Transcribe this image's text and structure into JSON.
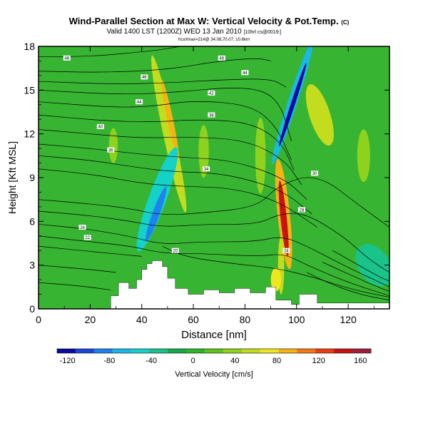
{
  "chart_data": {
    "type": "heatmap",
    "title": "Wind-Parallel Section at Max W: Vertical Velocity & Pot.Temp.",
    "title_mark": "(C)",
    "subtitle": "Valid 1400 LST (1200Z) WED 13 Jan 2010",
    "subtitle_note": "[10hrl cs@0019:]",
    "info_line": "hcx/Imax=214@ 34.08,70.07; 10.6km",
    "xlabel": "Distance [nm]",
    "ylabel": "Height [Kft MSL]",
    "xlim": [
      0,
      136
    ],
    "ylim": [
      0,
      18
    ],
    "xticks": [
      0,
      20,
      40,
      60,
      80,
      100,
      120
    ],
    "yticks": [
      0,
      3,
      6,
      9,
      12,
      15,
      18
    ],
    "colorbar": {
      "label": "Vertical Velocity [cm/s]",
      "ticks": [
        -120,
        -80,
        -40,
        0,
        40,
        80,
        120,
        160
      ],
      "range": [
        -130,
        170
      ],
      "colors": [
        "#0a0aa0",
        "#1e46dc",
        "#1e82f0",
        "#19b9e6",
        "#14d2c8",
        "#19c389",
        "#14a84a",
        "#2eb52e",
        "#5fc31e",
        "#8fd21e",
        "#c3dc1e",
        "#f0e61e",
        "#f5b414",
        "#f57814",
        "#eb3c14",
        "#c81414",
        "#a01e3c"
      ]
    },
    "colors": {
      "background": "#37b432",
      "terrain": "#ffffff"
    },
    "terrain": [
      [
        0,
        0
      ],
      [
        28,
        0
      ],
      [
        28,
        0.9
      ],
      [
        31,
        0.9
      ],
      [
        31,
        1.8
      ],
      [
        35,
        1.8
      ],
      [
        35,
        1.4
      ],
      [
        38,
        1.4
      ],
      [
        38,
        2.0
      ],
      [
        40,
        2.0
      ],
      [
        40,
        2.7
      ],
      [
        42,
        2.7
      ],
      [
        42,
        3.1
      ],
      [
        44,
        3.1
      ],
      [
        44,
        3.3
      ],
      [
        48,
        3.3
      ],
      [
        48,
        2.9
      ],
      [
        50,
        2.9
      ],
      [
        50,
        2.1
      ],
      [
        53,
        2.1
      ],
      [
        53,
        1.4
      ],
      [
        58,
        1.4
      ],
      [
        58,
        1.0
      ],
      [
        64,
        1.0
      ],
      [
        64,
        1.3
      ],
      [
        70,
        1.3
      ],
      [
        70,
        1.1
      ],
      [
        76,
        1.1
      ],
      [
        76,
        1.4
      ],
      [
        82,
        1.4
      ],
      [
        82,
        1.1
      ],
      [
        88,
        1.1
      ],
      [
        88,
        1.5
      ],
      [
        92,
        1.5
      ],
      [
        92,
        0.6
      ],
      [
        98,
        0.6
      ],
      [
        98,
        0.3
      ],
      [
        101,
        0.3
      ],
      [
        101,
        1.0
      ],
      [
        108,
        1.0
      ],
      [
        108,
        0.4
      ],
      [
        136,
        0.4
      ],
      [
        136,
        0
      ],
      [
        0,
        0
      ]
    ],
    "velocity_features": [
      {
        "x": 50.5,
        "y": 12.0,
        "rx": 2.2,
        "ry": 5.5,
        "value": 50,
        "rot": -12
      },
      {
        "x": 51.0,
        "y": 13.0,
        "rx": 1.1,
        "ry": 2.8,
        "value": 95,
        "rot": -12
      },
      {
        "x": 64.0,
        "y": 10.8,
        "rx": 2.0,
        "ry": 1.8,
        "value": 40,
        "rot": 0
      },
      {
        "x": 29.0,
        "y": 11.2,
        "rx": 1.7,
        "ry": 1.2,
        "value": 38,
        "rot": 0
      },
      {
        "x": 86.0,
        "y": 10.5,
        "rx": 2.0,
        "ry": 2.6,
        "value": 30,
        "rot": 0
      },
      {
        "x": 95.0,
        "y": 6.5,
        "rx": 2.4,
        "ry": 3.8,
        "value": 95,
        "rot": -6
      },
      {
        "x": 95.0,
        "y": 6.2,
        "rx": 1.2,
        "ry": 2.6,
        "value": 150,
        "rot": -6
      },
      {
        "x": 109.0,
        "y": 13.3,
        "rx": 4.0,
        "ry": 2.2,
        "value": 55,
        "rot": -18
      },
      {
        "x": 126.0,
        "y": 10.5,
        "rx": 2.5,
        "ry": 1.8,
        "value": 40,
        "rot": 0
      },
      {
        "x": 46.0,
        "y": 7.5,
        "rx": 3.4,
        "ry": 3.8,
        "value": -45,
        "rot": 20
      },
      {
        "x": 45.5,
        "y": 6.5,
        "rx": 1.4,
        "ry": 2.0,
        "value": -80,
        "rot": 20
      },
      {
        "x": 98.5,
        "y": 14.2,
        "rx": 1.8,
        "ry": 4.5,
        "value": -70,
        "rot": 18
      },
      {
        "x": 98.5,
        "y": 14.0,
        "rx": 0.8,
        "ry": 3.0,
        "value": -120,
        "rot": 18
      },
      {
        "x": 94.0,
        "y": 3.0,
        "rx": 1.2,
        "ry": 2.0,
        "value": 60,
        "rot": 0
      },
      {
        "x": 130.0,
        "y": 3.0,
        "rx": 6.0,
        "ry": 1.6,
        "value": -30,
        "rot": -35
      },
      {
        "x": 92.0,
        "y": 2.0,
        "rx": 2.0,
        "ry": 0.8,
        "value": 80,
        "rot": 0
      }
    ],
    "theta_contours": [
      {
        "label": "48",
        "lx": 11,
        "ly": 17.2,
        "points": [
          [
            0,
            17.3
          ],
          [
            20,
            17.3
          ],
          [
            45,
            17.7
          ],
          [
            55,
            18.0
          ]
        ]
      },
      {
        "label": "46",
        "lx": 71,
        "ly": 17.2,
        "points": [
          [
            0,
            16.3
          ],
          [
            25,
            16.2
          ],
          [
            50,
            16.4
          ],
          [
            70,
            17.0
          ],
          [
            85,
            17.2
          ],
          [
            90,
            17.0
          ]
        ]
      },
      {
        "label": "46",
        "lx": 41,
        "ly": 15.9,
        "points": [
          [
            0,
            15.6
          ],
          [
            30,
            15.4
          ],
          [
            50,
            15.5
          ],
          [
            70,
            15.7
          ],
          [
            90,
            15.8
          ],
          [
            96,
            15.2
          ]
        ]
      },
      {
        "label": "44",
        "lx": 80,
        "ly": 16.2,
        "points": [
          [
            0,
            15.0
          ],
          [
            30,
            14.7
          ],
          [
            50,
            14.8
          ],
          [
            80,
            15.3
          ],
          [
            93,
            14.5
          ],
          [
            98,
            11.5
          ]
        ]
      },
      {
        "label": "44",
        "lx": 39,
        "ly": 14.2,
        "points": [
          [
            0,
            14.2
          ],
          [
            30,
            13.8
          ],
          [
            45,
            13.9
          ],
          [
            60,
            14.3
          ],
          [
            82,
            14.0
          ],
          [
            92,
            12.6
          ],
          [
            98,
            10.2
          ]
        ]
      },
      {
        "label": "42",
        "lx": 67,
        "ly": 14.8,
        "points": [
          [
            0,
            13.3
          ],
          [
            25,
            12.9
          ],
          [
            45,
            12.8
          ],
          [
            62,
            13.0
          ],
          [
            82,
            12.8
          ],
          [
            94,
            11.5
          ],
          [
            99,
            9.5
          ]
        ]
      },
      {
        "label": "40",
        "lx": 24,
        "ly": 12.5,
        "points": [
          [
            0,
            12.3
          ],
          [
            20,
            12.0
          ],
          [
            40,
            11.7
          ],
          [
            58,
            11.8
          ],
          [
            80,
            11.6
          ],
          [
            95,
            10.3
          ],
          [
            102,
            8.5
          ]
        ]
      },
      {
        "label": "38",
        "lx": 67,
        "ly": 13.3,
        "points": [
          [
            0,
            11.3
          ],
          [
            20,
            11.0
          ],
          [
            40,
            10.6
          ],
          [
            55,
            10.4
          ],
          [
            75,
            10.2
          ],
          [
            95,
            9.0
          ],
          [
            104,
            7.5
          ]
        ]
      },
      {
        "label": "36",
        "lx": 28,
        "ly": 10.9,
        "points": [
          [
            0,
            10.5
          ],
          [
            20,
            10.2
          ],
          [
            38,
            9.7
          ],
          [
            52,
            9.4
          ],
          [
            72,
            9.3
          ],
          [
            94,
            8.2
          ],
          [
            106,
            6.5
          ]
        ]
      },
      {
        "label": "34",
        "lx": 65,
        "ly": 9.6,
        "points": [
          [
            0,
            9.6
          ],
          [
            22,
            9.2
          ],
          [
            40,
            8.6
          ],
          [
            55,
            8.4
          ],
          [
            75,
            8.3
          ],
          [
            93,
            7.4
          ],
          [
            108,
            5.6
          ]
        ]
      },
      {
        "label": "30",
        "lx": 107,
        "ly": 9.3,
        "points": [
          [
            0,
            7.5
          ],
          [
            20,
            7.2
          ],
          [
            35,
            6.9
          ],
          [
            48,
            6.4
          ],
          [
            65,
            6.6
          ],
          [
            85,
            7.0
          ],
          [
            93,
            8.5
          ],
          [
            108,
            9.3
          ],
          [
            125,
            7.0
          ],
          [
            136,
            5.6
          ]
        ]
      },
      {
        "label": "28",
        "lx": 102,
        "ly": 6.8,
        "points": [
          [
            0,
            6.7
          ],
          [
            20,
            6.4
          ],
          [
            36,
            6.0
          ],
          [
            48,
            5.6
          ],
          [
            64,
            5.8
          ],
          [
            85,
            5.8
          ],
          [
            93,
            6.5
          ],
          [
            103,
            6.6
          ],
          [
            118,
            5.0
          ],
          [
            128,
            3.4
          ],
          [
            136,
            2.5
          ]
        ]
      },
      {
        "label": "26",
        "lx": 17,
        "ly": 5.6,
        "points": [
          [
            0,
            5.8
          ],
          [
            18,
            5.5
          ],
          [
            35,
            5.0
          ],
          [
            48,
            4.4
          ],
          [
            62,
            4.6
          ],
          [
            84,
            4.6
          ],
          [
            94,
            5.0
          ],
          [
            103,
            4.4
          ],
          [
            118,
            3.0
          ],
          [
            130,
            2.0
          ],
          [
            136,
            1.5
          ]
        ]
      },
      {
        "label": "24",
        "lx": 96,
        "ly": 4.0,
        "points": [
          [
            0,
            5.0
          ],
          [
            20,
            4.6
          ],
          [
            36,
            4.3
          ],
          [
            48,
            3.8
          ],
          [
            62,
            3.8
          ],
          [
            85,
            3.6
          ],
          [
            95,
            3.8
          ],
          [
            104,
            3.0
          ],
          [
            120,
            1.8
          ],
          [
            136,
            0.9
          ]
        ]
      },
      {
        "label": "22",
        "lx": 19,
        "ly": 4.9,
        "points": [
          [
            0,
            4.3
          ],
          [
            22,
            3.9
          ],
          [
            40,
            3.6
          ]
        ]
      },
      {
        "label": "20",
        "lx": 53,
        "ly": 4.0,
        "points": [
          [
            48,
            4.3
          ],
          [
            56,
            3.6
          ],
          [
            75,
            3.1
          ],
          [
            92,
            2.8
          ],
          [
            106,
            2.2
          ],
          [
            122,
            1.3
          ],
          [
            136,
            0.8
          ]
        ]
      },
      {
        "label": "",
        "lx": 0,
        "ly": 0,
        "points": [
          [
            0,
            3.0
          ],
          [
            20,
            2.7
          ],
          [
            30,
            2.5
          ]
        ]
      },
      {
        "label": "",
        "lx": 0,
        "ly": 0,
        "points": [
          [
            0,
            1.8
          ],
          [
            15,
            1.6
          ],
          [
            28,
            1.3
          ]
        ]
      },
      {
        "label": "",
        "lx": 0,
        "ly": 0,
        "points": [
          [
            104,
            2.5
          ],
          [
            112,
            1.8
          ],
          [
            124,
            1.0
          ],
          [
            136,
            0.6
          ]
        ]
      },
      {
        "label": "",
        "lx": 0,
        "ly": 0,
        "points": [
          [
            110,
            3.2
          ],
          [
            120,
            2.4
          ],
          [
            130,
            1.6
          ],
          [
            136,
            1.2
          ]
        ]
      },
      {
        "label": "",
        "lx": 0,
        "ly": 0,
        "points": [
          [
            114,
            4.0
          ],
          [
            124,
            3.0
          ],
          [
            132,
            2.2
          ],
          [
            136,
            1.9
          ]
        ]
      }
    ]
  }
}
